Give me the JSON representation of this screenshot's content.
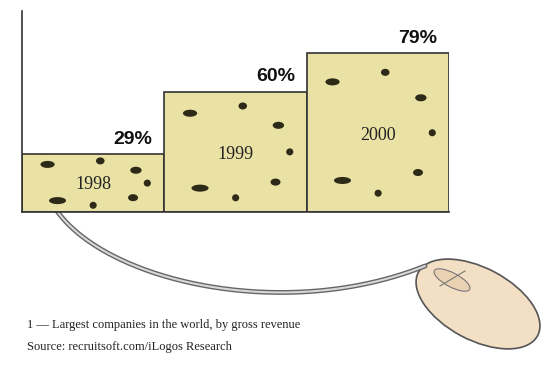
{
  "chart_data": {
    "type": "bar",
    "categories": [
      "1998",
      "1999",
      "2000"
    ],
    "values": [
      29,
      60,
      79
    ],
    "value_labels": [
      "29%",
      "60%",
      "79%"
    ],
    "data_labels": true,
    "color": "#e9e2a4",
    "ylim": [
      0,
      100
    ],
    "tick_labels": false,
    "footnote": "1 — Largest companies in the world, by gross revenue",
    "source": "Source: recruitsoft.com/iLogos Research"
  }
}
